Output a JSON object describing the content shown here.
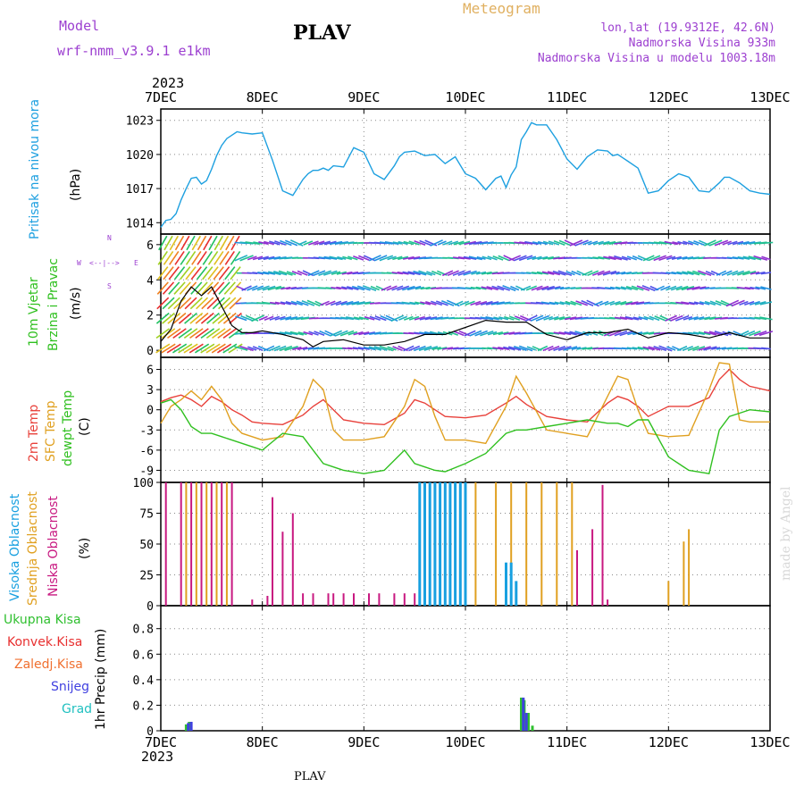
{
  "header": {
    "model_label": "Model",
    "model_name": "wrf-nmm_v3.9.1  e1km",
    "station": "PLAV",
    "meteogram_label": "Meteogram",
    "coords": "lon,lat (19.9312E, 42.6N)",
    "altitude": "Nadmorska Visina 933m",
    "model_altitude": "Nadmorska Visina u modelu 1003.18m",
    "year_top": "2023",
    "year_bottom": "2023",
    "footer_station": "PLAV",
    "credit": "made by Angel"
  },
  "colors": {
    "pressure": "#1ea0e0",
    "temp2m": "#e8403a",
    "sfc": "#e0a020",
    "dewpt": "#30c020",
    "high_cloud": "#18a0e0",
    "mid_cloud": "#e0a020",
    "low_cloud": "#c81880",
    "total_precip": "#30c030",
    "convective": "#e83030",
    "frozen": "#f07030",
    "snow": "#4040e0",
    "hail": "#20c0c0",
    "violet": "#9c3fd0"
  },
  "panel_labels": {
    "pressure": {
      "name": "Pritisak na nivou mora",
      "unit": "(hPa)"
    },
    "wind": {
      "name1": "10m Vjetar",
      "name2": "Brzina i Pravac",
      "unit": "(m/s)",
      "compass_n": "N",
      "compass_s": "S",
      "compass_w": "W",
      "compass_e": "E"
    },
    "temp": {
      "name1": "2m Temp",
      "name2": "SFC Temp",
      "name3": "dewpt Temp",
      "unit": "(C)"
    },
    "cloud": {
      "name1": "Visoka Oblacnost",
      "name2": "Srednja Oblacnost",
      "name3": "Niska Oblacnost",
      "unit": "(%)"
    },
    "precip": {
      "legend": [
        "Ukupna  Kisa",
        "Konvek.Kisa",
        "Zaledj.Kisa",
        "Snijeg",
        "Grad"
      ],
      "axis": "1hr Precip (mm)"
    }
  },
  "chart_data": [
    {
      "type": "line",
      "name": "pressure",
      "x_ticks": [
        "7DEC",
        "8DEC",
        "9DEC",
        "10DEC",
        "11DEC",
        "12DEC",
        "13DEC"
      ],
      "ylim": [
        1013,
        1024
      ],
      "y_ticks": [
        "1014",
        "1017",
        "1020",
        "1023"
      ],
      "x": [
        0,
        0.05,
        0.1,
        0.15,
        0.2,
        0.25,
        0.3,
        0.35,
        0.4,
        0.45,
        0.5,
        0.55,
        0.6,
        0.65,
        0.7,
        0.75,
        0.8,
        0.9,
        1.0,
        1.1,
        1.2,
        1.3,
        1.4,
        1.45,
        1.5,
        1.55,
        1.6,
        1.65,
        1.7,
        1.8,
        1.9,
        2.0,
        2.1,
        2.2,
        2.3,
        2.35,
        2.4,
        2.5,
        2.6,
        2.7,
        2.8,
        2.9,
        3.0,
        3.1,
        3.2,
        3.25,
        3.3,
        3.35,
        3.4,
        3.45,
        3.5,
        3.55,
        3.6,
        3.65,
        3.7,
        3.8,
        3.9,
        4.0,
        4.1,
        4.2,
        4.3,
        4.4,
        4.45,
        4.5,
        4.55,
        4.6,
        4.7,
        4.8,
        4.9,
        5.0,
        5.1,
        5.2,
        5.3,
        5.4,
        5.5,
        5.55,
        5.6,
        5.7,
        5.8,
        5.9,
        6.0
      ],
      "y": [
        1013.6,
        1014.2,
        1014.3,
        1014.8,
        1016.0,
        1017.0,
        1017.9,
        1018.0,
        1017.4,
        1017.7,
        1018.7,
        1019.9,
        1020.8,
        1021.4,
        1021.7,
        1022.0,
        1021.9,
        1021.8,
        1021.9,
        1019.5,
        1016.8,
        1016.4,
        1017.8,
        1018.3,
        1018.6,
        1018.6,
        1018.8,
        1018.6,
        1019.0,
        1018.9,
        1020.6,
        1020.2,
        1018.3,
        1017.8,
        1019.0,
        1019.8,
        1020.2,
        1020.3,
        1019.9,
        1020.0,
        1019.2,
        1019.8,
        1018.3,
        1017.9,
        1016.9,
        1017.4,
        1017.9,
        1018.1,
        1017.1,
        1018.2,
        1018.9,
        1021.3,
        1022.0,
        1022.8,
        1022.6,
        1022.6,
        1021.3,
        1019.6,
        1018.7,
        1019.8,
        1020.4,
        1020.3,
        1019.9,
        1020.0,
        1019.7,
        1019.4,
        1018.8,
        1016.6,
        1016.8,
        1017.7,
        1018.3,
        1018.0,
        1016.8,
        1016.7,
        1017.5,
        1018.0,
        1018.0,
        1017.5,
        1016.8,
        1016.6,
        1016.5
      ]
    },
    {
      "type": "line",
      "name": "wind_speed",
      "ylim": [
        -0.4,
        6.6
      ],
      "y_ticks": [
        "0",
        "2",
        "4",
        "6"
      ],
      "x": [
        0,
        0.1,
        0.2,
        0.3,
        0.4,
        0.5,
        0.6,
        0.7,
        0.8,
        0.9,
        1.0,
        1.2,
        1.4,
        1.5,
        1.6,
        1.8,
        2.0,
        2.2,
        2.4,
        2.6,
        2.8,
        3.0,
        3.2,
        3.4,
        3.6,
        3.8,
        4.0,
        4.2,
        4.4,
        4.6,
        4.8,
        5.0,
        5.2,
        5.4,
        5.6,
        5.8,
        6.0
      ],
      "y": [
        0.5,
        1.2,
        2.8,
        3.6,
        3.1,
        3.6,
        2.5,
        1.4,
        1.0,
        1.0,
        1.1,
        0.9,
        0.6,
        0.2,
        0.5,
        0.6,
        0.3,
        0.3,
        0.5,
        0.9,
        0.9,
        1.3,
        1.7,
        1.6,
        1.6,
        0.9,
        0.6,
        1.0,
        1.0,
        1.2,
        0.7,
        1.0,
        0.9,
        0.7,
        1.0,
        0.7,
        0.7
      ]
    },
    {
      "type": "line",
      "name": "temperature",
      "ylim": [
        -10.8,
        7.8
      ],
      "y_ticks": [
        "-9",
        "-6",
        "-3",
        "0",
        "3",
        "6"
      ],
      "series": [
        {
          "name": "2m Temp",
          "color_key": "temp2m",
          "x": [
            0,
            0.1,
            0.2,
            0.3,
            0.4,
            0.5,
            0.6,
            0.7,
            0.8,
            0.9,
            1.0,
            1.2,
            1.4,
            1.5,
            1.6,
            1.7,
            1.8,
            2.0,
            2.2,
            2.4,
            2.5,
            2.6,
            2.7,
            2.8,
            3.0,
            3.2,
            3.4,
            3.5,
            3.6,
            3.8,
            4.0,
            4.2,
            4.4,
            4.5,
            4.6,
            4.7,
            4.8,
            5.0,
            5.2,
            5.4,
            5.5,
            5.6,
            5.7,
            5.8,
            6.0
          ],
          "y": [
            1.2,
            1.8,
            2.2,
            1.5,
            0.5,
            2.0,
            1.2,
            0.0,
            -0.8,
            -1.8,
            -2.0,
            -2.2,
            -0.8,
            0.5,
            1.5,
            0.0,
            -1.5,
            -2.0,
            -2.2,
            -0.5,
            1.5,
            1.0,
            0.0,
            -1.0,
            -1.2,
            -0.8,
            1.0,
            2.0,
            0.8,
            -1.0,
            -1.5,
            -1.8,
            1.0,
            2.0,
            1.5,
            0.5,
            -1.0,
            0.5,
            0.5,
            1.8,
            4.5,
            6.0,
            4.5,
            3.5,
            2.8
          ]
        },
        {
          "name": "SFC Temp",
          "color_key": "sfc",
          "x": [
            0,
            0.1,
            0.2,
            0.3,
            0.4,
            0.5,
            0.6,
            0.7,
            0.8,
            0.9,
            1.0,
            1.2,
            1.4,
            1.5,
            1.6,
            1.7,
            1.8,
            2.0,
            2.2,
            2.4,
            2.5,
            2.6,
            2.7,
            2.8,
            3.0,
            3.2,
            3.4,
            3.5,
            3.6,
            3.8,
            4.0,
            4.2,
            4.4,
            4.5,
            4.6,
            4.7,
            4.8,
            5.0,
            5.2,
            5.4,
            5.5,
            5.6,
            5.7,
            5.8,
            6.0
          ],
          "y": [
            -2.0,
            0.5,
            1.5,
            2.8,
            1.5,
            3.5,
            1.5,
            -2.0,
            -3.5,
            -4.0,
            -4.5,
            -4.0,
            0.5,
            4.5,
            3.0,
            -3.0,
            -4.5,
            -4.5,
            -4.0,
            0.5,
            4.5,
            3.5,
            -1.0,
            -4.5,
            -4.5,
            -5.0,
            0.5,
            5.0,
            2.5,
            -3.0,
            -3.5,
            -4.0,
            2.0,
            5.0,
            4.5,
            0.0,
            -3.5,
            -4.0,
            -3.8,
            3.0,
            7.0,
            6.8,
            -1.5,
            -1.8,
            -1.8
          ]
        },
        {
          "name": "dewpt Temp",
          "color_key": "dewpt",
          "x": [
            0,
            0.1,
            0.2,
            0.3,
            0.4,
            0.5,
            0.6,
            0.7,
            0.8,
            0.9,
            1.0,
            1.2,
            1.4,
            1.5,
            1.6,
            1.7,
            1.8,
            2.0,
            2.2,
            2.4,
            2.5,
            2.6,
            2.7,
            2.8,
            3.0,
            3.2,
            3.4,
            3.5,
            3.6,
            3.8,
            4.0,
            4.2,
            4.4,
            4.5,
            4.6,
            4.7,
            4.8,
            5.0,
            5.2,
            5.4,
            5.5,
            5.6,
            5.7,
            5.8,
            6.0
          ],
          "y": [
            1.0,
            1.5,
            0.0,
            -2.5,
            -3.5,
            -3.5,
            -4.0,
            -4.5,
            -5.0,
            -5.5,
            -6.0,
            -3.5,
            -4.0,
            -6.0,
            -8.0,
            -8.5,
            -9.0,
            -9.5,
            -9.0,
            -6.0,
            -8.0,
            -8.5,
            -9.0,
            -9.2,
            -8.0,
            -6.5,
            -3.5,
            -3.0,
            -3.0,
            -2.5,
            -2.0,
            -1.5,
            -2.0,
            -2.0,
            -2.5,
            -1.5,
            -1.5,
            -7.0,
            -9.0,
            -9.5,
            -3.0,
            -1.0,
            -0.5,
            0.0,
            -0.3
          ]
        }
      ]
    },
    {
      "type": "bar",
      "name": "cloud_cover",
      "ylim": [
        0,
        100
      ],
      "y_ticks": [
        "0",
        "25",
        "50",
        "75",
        "100"
      ],
      "series": [
        {
          "name": "Niska Oblacnost",
          "color_key": "low_cloud",
          "x": [
            0.05,
            0.2,
            0.3,
            0.4,
            0.5,
            0.6,
            0.7,
            0.9,
            1.05,
            1.1,
            1.2,
            1.3,
            1.4,
            1.5,
            1.65,
            1.7,
            1.8,
            1.9,
            2.05,
            2.15,
            2.3,
            2.4,
            2.5,
            2.6,
            4.1,
            4.25,
            4.35,
            4.4
          ],
          "y": [
            100,
            100,
            100,
            100,
            100,
            100,
            100,
            5,
            8,
            88,
            60,
            75,
            10,
            10,
            10,
            10,
            10,
            10,
            10,
            10,
            10,
            10,
            10,
            10,
            45,
            62,
            98,
            5
          ]
        },
        {
          "name": "Srednja Oblacnost",
          "color_key": "mid_cloud",
          "x": [
            0.25,
            0.35,
            0.45,
            0.55,
            0.65,
            3.1,
            3.3,
            3.45,
            3.6,
            3.75,
            3.9,
            4.05,
            5.0,
            5.15,
            5.2
          ],
          "y": [
            100,
            100,
            100,
            100,
            100,
            100,
            100,
            100,
            100,
            100,
            100,
            100,
            20,
            52,
            62
          ]
        },
        {
          "name": "Visoka Oblacnost",
          "color_key": "high_cloud",
          "x": [
            2.55,
            2.6,
            2.65,
            2.7,
            2.75,
            2.8,
            2.85,
            2.9,
            2.95,
            3.0,
            3.4,
            3.45,
            3.5
          ],
          "y": [
            100,
            100,
            100,
            100,
            100,
            100,
            100,
            100,
            100,
            100,
            35,
            35,
            20
          ]
        }
      ]
    },
    {
      "type": "bar",
      "name": "hourly_precip",
      "ylim": [
        0,
        0.98
      ],
      "y_ticks": [
        "0",
        "0.2",
        "0.4",
        "0.6",
        "0.8"
      ],
      "series": [
        {
          "name": "Ukupna  Kisa",
          "color_key": "total_precip",
          "x": [
            0.25,
            0.28,
            3.55,
            3.58,
            3.62,
            3.66
          ],
          "y": [
            0.05,
            0.07,
            0.26,
            0.24,
            0.14,
            0.04
          ]
        },
        {
          "name": "Snijeg",
          "color_key": "snow",
          "x": [
            0.27,
            0.3,
            3.57,
            3.6
          ],
          "y": [
            0.06,
            0.07,
            0.26,
            0.14
          ]
        }
      ]
    }
  ]
}
